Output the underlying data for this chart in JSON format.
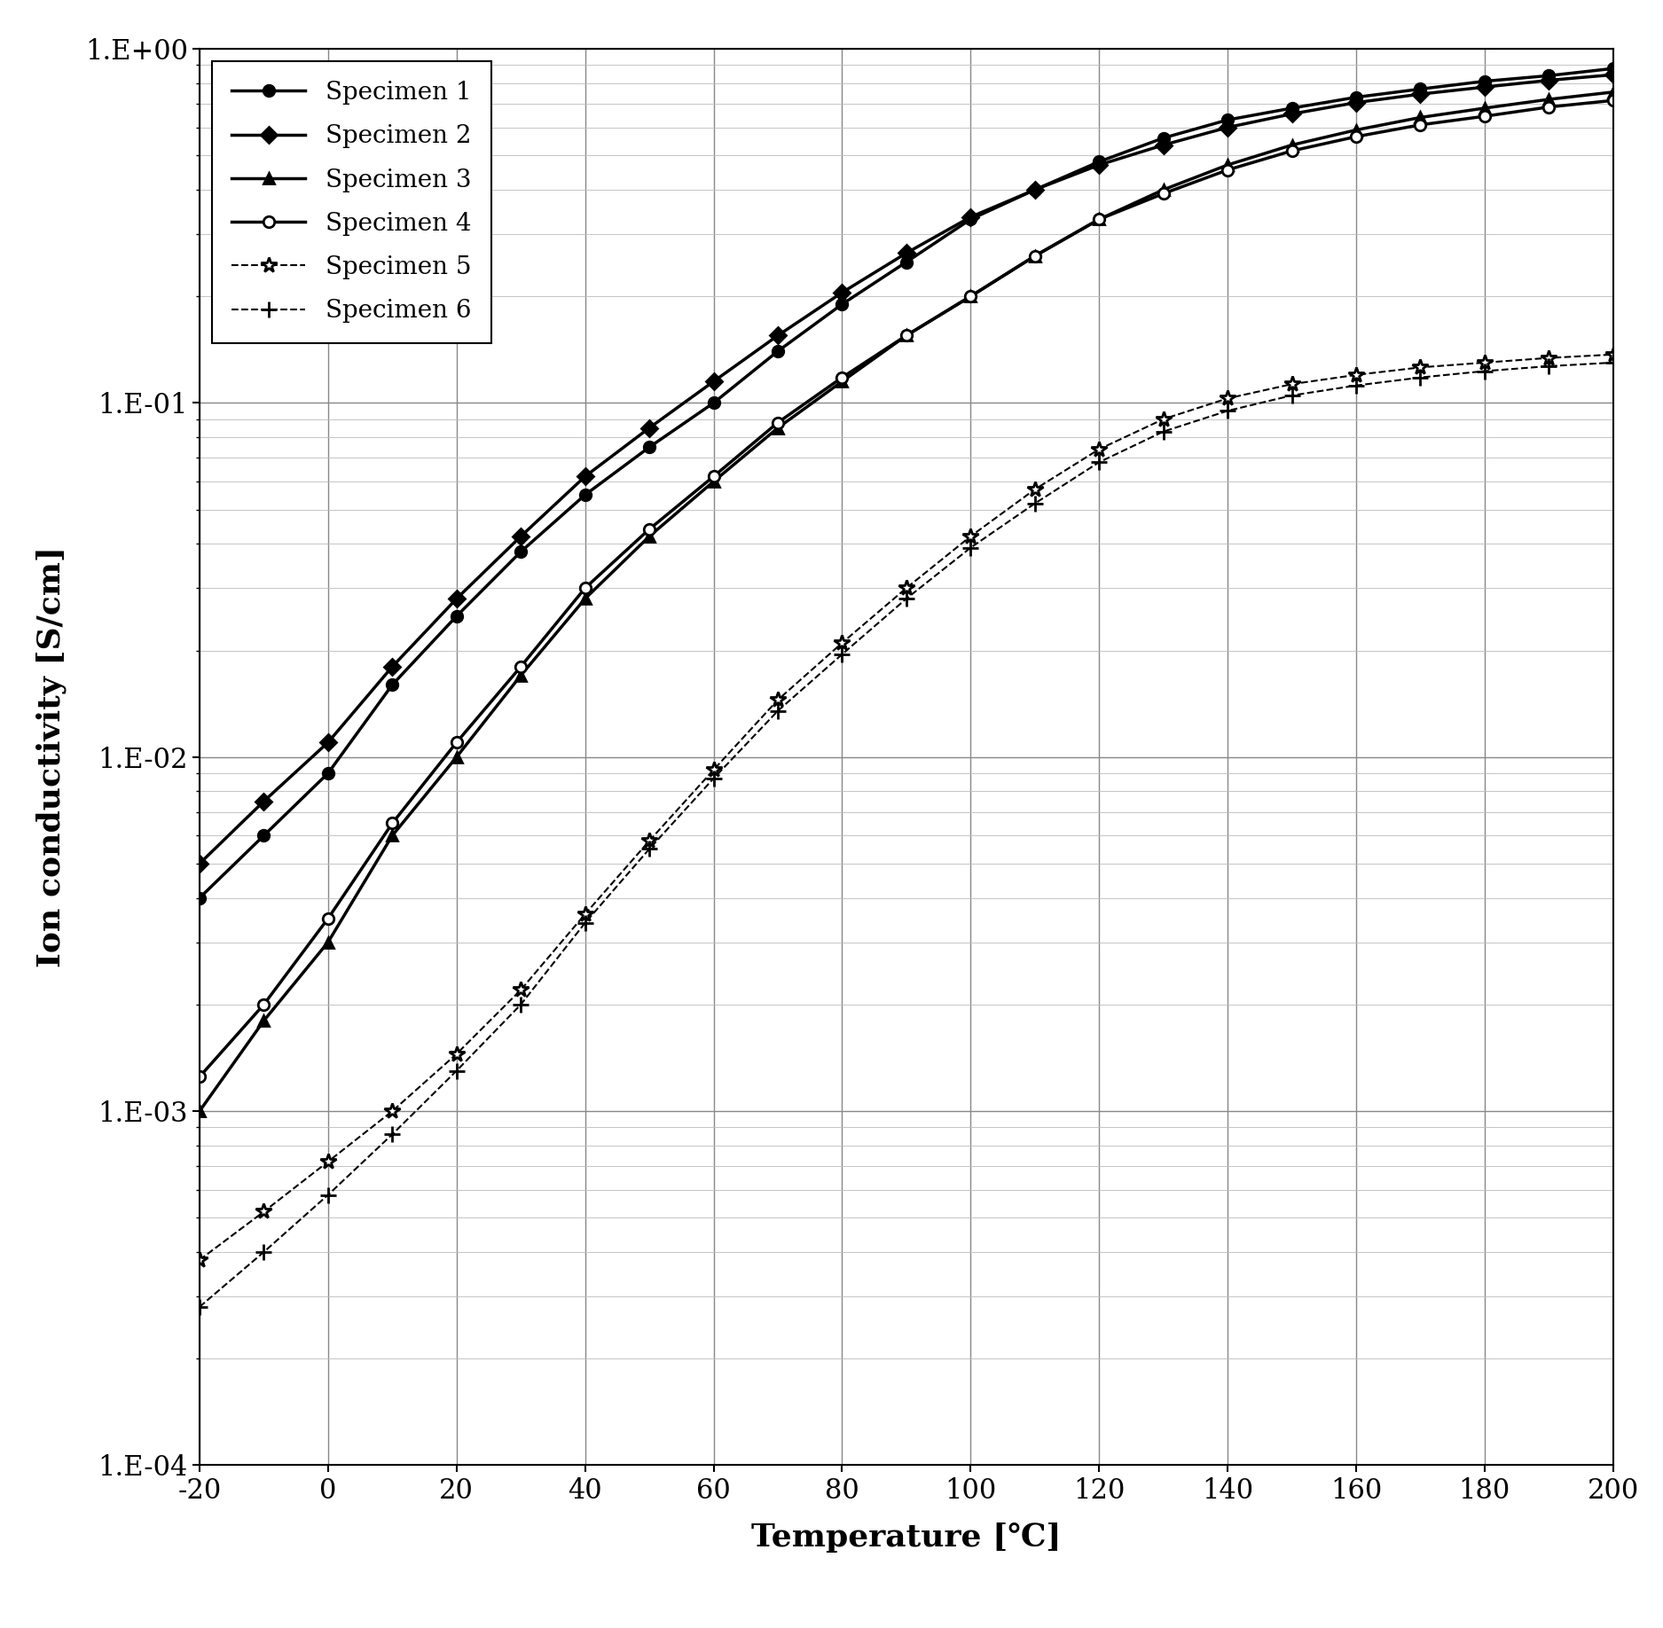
{
  "title": "",
  "xlabel": "Temperature [℃]",
  "ylabel": "Ion conductivity [S/cm]",
  "xlim": [
    -20,
    200
  ],
  "ylim": [
    0.0001,
    1.0
  ],
  "xticks": [
    -20,
    0,
    20,
    40,
    60,
    80,
    100,
    120,
    140,
    160,
    180,
    200
  ],
  "series": [
    {
      "label": "Specimen 1",
      "color": "#000000",
      "linestyle": "-",
      "marker": "o",
      "marker_filled": true,
      "linewidth": 2.5,
      "markersize": 9,
      "x": [
        -20,
        -10,
        0,
        10,
        20,
        30,
        40,
        50,
        60,
        70,
        80,
        90,
        100,
        110,
        120,
        130,
        140,
        150,
        160,
        170,
        180,
        190,
        200
      ],
      "y": [
        0.004,
        0.006,
        0.009,
        0.016,
        0.025,
        0.038,
        0.055,
        0.075,
        0.1,
        0.14,
        0.19,
        0.25,
        0.33,
        0.4,
        0.48,
        0.56,
        0.63,
        0.68,
        0.73,
        0.77,
        0.81,
        0.84,
        0.88
      ]
    },
    {
      "label": "Specimen 2",
      "color": "#000000",
      "linestyle": "-",
      "marker": "D",
      "marker_filled": true,
      "linewidth": 2.5,
      "markersize": 9,
      "x": [
        -20,
        -10,
        0,
        10,
        20,
        30,
        40,
        50,
        60,
        70,
        80,
        90,
        100,
        110,
        120,
        130,
        140,
        150,
        160,
        170,
        180,
        190,
        200
      ],
      "y": [
        0.005,
        0.0075,
        0.011,
        0.018,
        0.028,
        0.042,
        0.062,
        0.085,
        0.115,
        0.155,
        0.205,
        0.265,
        0.335,
        0.4,
        0.47,
        0.535,
        0.6,
        0.655,
        0.705,
        0.745,
        0.78,
        0.815,
        0.845
      ]
    },
    {
      "label": "Specimen 3",
      "color": "#000000",
      "linestyle": "-",
      "marker": "^",
      "marker_filled": true,
      "linewidth": 2.5,
      "markersize": 9,
      "x": [
        -20,
        -10,
        0,
        10,
        20,
        30,
        40,
        50,
        60,
        70,
        80,
        90,
        100,
        110,
        120,
        130,
        140,
        150,
        160,
        170,
        180,
        190,
        200
      ],
      "y": [
        0.001,
        0.0018,
        0.003,
        0.006,
        0.01,
        0.017,
        0.028,
        0.042,
        0.06,
        0.085,
        0.115,
        0.155,
        0.2,
        0.26,
        0.33,
        0.4,
        0.47,
        0.535,
        0.59,
        0.64,
        0.68,
        0.72,
        0.755
      ]
    },
    {
      "label": "Specimen 4",
      "color": "#000000",
      "linestyle": "-",
      "marker": "o",
      "marker_filled": false,
      "linewidth": 2.5,
      "markersize": 9,
      "x": [
        -20,
        -10,
        0,
        10,
        20,
        30,
        40,
        50,
        60,
        70,
        80,
        90,
        100,
        110,
        120,
        130,
        140,
        150,
        160,
        170,
        180,
        190,
        200
      ],
      "y": [
        0.00125,
        0.002,
        0.0035,
        0.0065,
        0.011,
        0.018,
        0.03,
        0.044,
        0.062,
        0.088,
        0.118,
        0.155,
        0.2,
        0.26,
        0.33,
        0.39,
        0.455,
        0.515,
        0.565,
        0.61,
        0.645,
        0.685,
        0.715
      ]
    },
    {
      "label": "Specimen 5",
      "color": "#000000",
      "linestyle": "--",
      "marker": "*",
      "marker_filled": false,
      "linewidth": 1.5,
      "markersize": 13,
      "x": [
        -20,
        -10,
        0,
        10,
        20,
        30,
        40,
        50,
        60,
        70,
        80,
        90,
        100,
        110,
        120,
        130,
        140,
        150,
        160,
        170,
        180,
        190,
        200
      ],
      "y": [
        0.00038,
        0.00052,
        0.00072,
        0.001,
        0.00145,
        0.0022,
        0.0036,
        0.0058,
        0.0092,
        0.0145,
        0.021,
        0.03,
        0.042,
        0.057,
        0.074,
        0.09,
        0.103,
        0.113,
        0.12,
        0.126,
        0.13,
        0.134,
        0.137
      ]
    },
    {
      "label": "Specimen 6",
      "color": "#000000",
      "linestyle": "--",
      "marker": "+",
      "marker_filled": false,
      "linewidth": 1.5,
      "markersize": 13,
      "x": [
        -20,
        -10,
        0,
        10,
        20,
        30,
        40,
        50,
        60,
        70,
        80,
        90,
        100,
        110,
        120,
        130,
        140,
        150,
        160,
        170,
        180,
        190,
        200
      ],
      "y": [
        0.00028,
        0.0004,
        0.00058,
        0.00086,
        0.0013,
        0.002,
        0.0034,
        0.0055,
        0.0087,
        0.0135,
        0.0195,
        0.028,
        0.039,
        0.052,
        0.068,
        0.083,
        0.095,
        0.105,
        0.112,
        0.118,
        0.123,
        0.127,
        0.13
      ]
    }
  ],
  "background_color": "#ffffff",
  "grid_major_color": "#888888",
  "grid_minor_color": "#bbbbbb",
  "legend_fontsize": 20,
  "axis_label_fontsize": 26,
  "tick_fontsize": 22
}
